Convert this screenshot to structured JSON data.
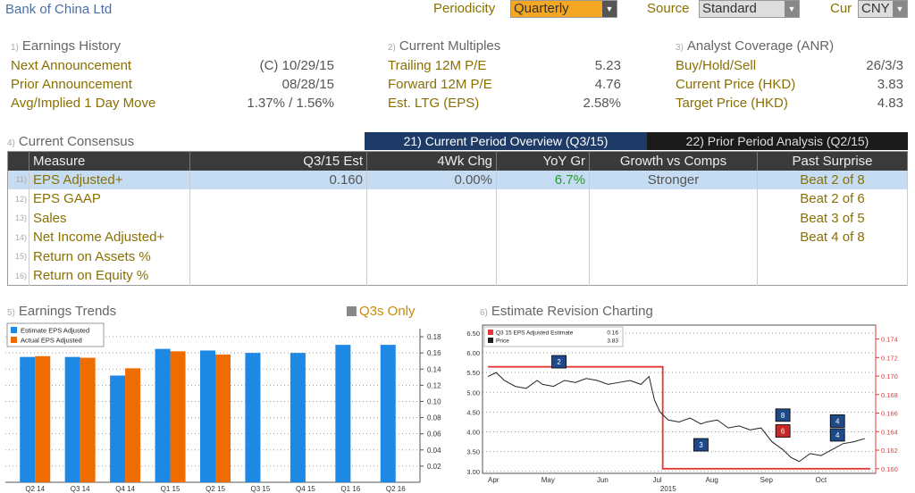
{
  "header": {
    "company": "Bank of China Ltd",
    "periodicity_label": "Periodicity",
    "periodicity_value": "Quarterly",
    "source_label": "Source",
    "source_value": "Standard",
    "cur_label": "Cur",
    "cur_value": "CNY"
  },
  "earnings_history": {
    "num": "1)",
    "title": "Earnings History",
    "rows": [
      {
        "label": "Next Announcement",
        "value": "(C)  10/29/15"
      },
      {
        "label": "Prior Announcement",
        "value": "08/28/15"
      },
      {
        "label": "Avg/Implied 1 Day Move",
        "value": "1.37% / 1.56%"
      }
    ]
  },
  "current_multiples": {
    "num": "2)",
    "title": "Current Multiples",
    "rows": [
      {
        "label": "Trailing 12M P/E",
        "value": "5.23"
      },
      {
        "label": "Forward 12M P/E",
        "value": "4.76"
      },
      {
        "label": "Est. LTG (EPS)",
        "value": "2.58%"
      }
    ]
  },
  "analyst_coverage": {
    "num": "3)",
    "title": "Analyst Coverage (ANR)",
    "rows": [
      {
        "label": "Buy/Hold/Sell",
        "value": "26/3/3"
      },
      {
        "label": "Current Price (HKD)",
        "value": "3.83"
      },
      {
        "label": "Target Price (HKD)",
        "value": "4.83"
      }
    ]
  },
  "consensus": {
    "num": "4)",
    "title": "Current Consensus",
    "tab_current": "21) Current Period Overview (Q3/15)",
    "tab_prior": "22) Prior Period Analysis (Q2/15)",
    "columns": [
      "Measure",
      "Q3/15 Est",
      "4Wk Chg",
      "YoY Gr",
      "Growth vs Comps",
      "Past Surprise"
    ],
    "rows": [
      {
        "num": "11)",
        "measure": "EPS Adjusted+",
        "est": "0.160",
        "chg": "0.00%",
        "yoy": "6.7%",
        "comps": "Stronger",
        "surprise": "Beat 2 of 8"
      },
      {
        "num": "12)",
        "measure": "EPS GAAP",
        "est": "",
        "chg": "",
        "yoy": "",
        "comps": "",
        "surprise": "Beat 2 of 6"
      },
      {
        "num": "13)",
        "measure": "Sales",
        "est": "",
        "chg": "",
        "yoy": "",
        "comps": "",
        "surprise": "Beat 3 of 5"
      },
      {
        "num": "14)",
        "measure": "Net Income Adjusted+",
        "est": "",
        "chg": "",
        "yoy": "",
        "comps": "",
        "surprise": "Beat 4 of 8"
      },
      {
        "num": "15)",
        "measure": "Return on Assets %",
        "est": "",
        "chg": "",
        "yoy": "",
        "comps": "",
        "surprise": ""
      },
      {
        "num": "16)",
        "measure": "Return on Equity %",
        "est": "",
        "chg": "",
        "yoy": "",
        "comps": "",
        "surprise": ""
      }
    ]
  },
  "earnings_trends": {
    "num": "5)",
    "title": "Earnings Trends",
    "q3s_label": "Q3s Only"
  },
  "estimate_revision": {
    "num": "6)",
    "title": "Estimate Revision Charting"
  },
  "colors": {
    "estimate": "#1e88e5",
    "actual": "#ef6c00",
    "price": "#222222",
    "est_line": "#e53935",
    "accent_dark": "#1e3a66"
  },
  "chart_data": [
    {
      "type": "bar",
      "categories": [
        "Q2 14",
        "Q3 14",
        "Q4 14",
        "Q1 15",
        "Q2 15",
        "Q3 15",
        "Q4 15",
        "Q1 16",
        "Q2 16"
      ],
      "series": [
        {
          "name": "Estimate EPS Adjusted",
          "values": [
            0.155,
            0.155,
            0.132,
            0.165,
            0.163,
            0.16,
            0.16,
            0.17,
            0.17
          ]
        },
        {
          "name": "Actual EPS Adjusted",
          "values": [
            0.156,
            0.154,
            0.141,
            0.162,
            0.158,
            null,
            null,
            null,
            null
          ]
        }
      ],
      "yticks": [
        0.02,
        0.04,
        0.06,
        0.08,
        0.1,
        0.12,
        0.14,
        0.16,
        0.18
      ],
      "ylim": [
        0,
        0.19
      ],
      "legend": "top-left"
    },
    {
      "type": "line",
      "x_labels": [
        "Apr",
        "May",
        "Jun",
        "Jul",
        "Aug",
        "Sep",
        "Oct"
      ],
      "x_year": "2015",
      "series": [
        {
          "name": "Q3 15 EPS Adjusted Estimate",
          "legend_value": "0.16",
          "axis": "right",
          "x": [
            0.0,
            2.0,
            3.1,
            3.2,
            5.5,
            6.0,
            6.6,
            7.0
          ],
          "values": [
            0.171,
            0.171,
            0.171,
            0.16,
            0.16,
            0.16,
            0.16,
            0.16
          ]
        },
        {
          "name": "Price",
          "legend_value": "3.83",
          "axis": "left",
          "x": [
            0.0,
            0.15,
            0.3,
            0.5,
            0.7,
            0.9,
            1.0,
            1.2,
            1.4,
            1.6,
            1.8,
            2.0,
            2.2,
            2.4,
            2.6,
            2.8,
            2.95,
            3.05,
            3.15,
            3.3,
            3.5,
            3.7,
            3.9,
            4.0,
            4.2,
            4.4,
            4.6,
            4.8,
            5.0,
            5.2,
            5.4,
            5.55,
            5.7,
            5.9,
            6.1,
            6.3,
            6.5,
            6.7,
            6.9
          ],
          "values": [
            5.4,
            5.5,
            5.3,
            5.15,
            5.1,
            5.3,
            5.2,
            5.15,
            5.3,
            5.25,
            5.35,
            5.3,
            5.2,
            5.25,
            5.3,
            5.2,
            5.4,
            4.8,
            4.5,
            4.3,
            4.25,
            4.35,
            4.2,
            4.25,
            4.3,
            4.1,
            4.15,
            4.05,
            4.1,
            3.75,
            3.55,
            3.35,
            3.25,
            3.45,
            3.4,
            3.55,
            3.7,
            3.75,
            3.83
          ]
        }
      ],
      "left_ticks": [
        "3.00",
        "3.50",
        "4.00",
        "4.50",
        "5.00",
        "5.50",
        "6.00",
        "6.50"
      ],
      "right_ticks": [
        "0.160",
        "0.162",
        "0.164",
        "0.166",
        "0.168",
        "0.170",
        "0.172",
        "0.174"
      ],
      "left_ylim": [
        2.95,
        6.7
      ],
      "right_ylim": [
        0.1595,
        0.1755
      ],
      "markers": [
        {
          "label": "2",
          "color": "#1e4a8a",
          "x": 1.3,
          "y": 5.75
        },
        {
          "label": "3",
          "color": "#1e4a8a",
          "x": 3.9,
          "y": 3.65
        },
        {
          "label": "8",
          "color": "#1e4a8a",
          "x": 5.4,
          "y": 4.4
        },
        {
          "label": "6",
          "color": "#c62828",
          "x": 5.4,
          "y": 4.0
        },
        {
          "label": "4",
          "color": "#1e4a8a",
          "x": 6.4,
          "y": 4.25
        },
        {
          "label": "4",
          "color": "#1e4a8a",
          "x": 6.4,
          "y": 3.9
        }
      ]
    }
  ]
}
